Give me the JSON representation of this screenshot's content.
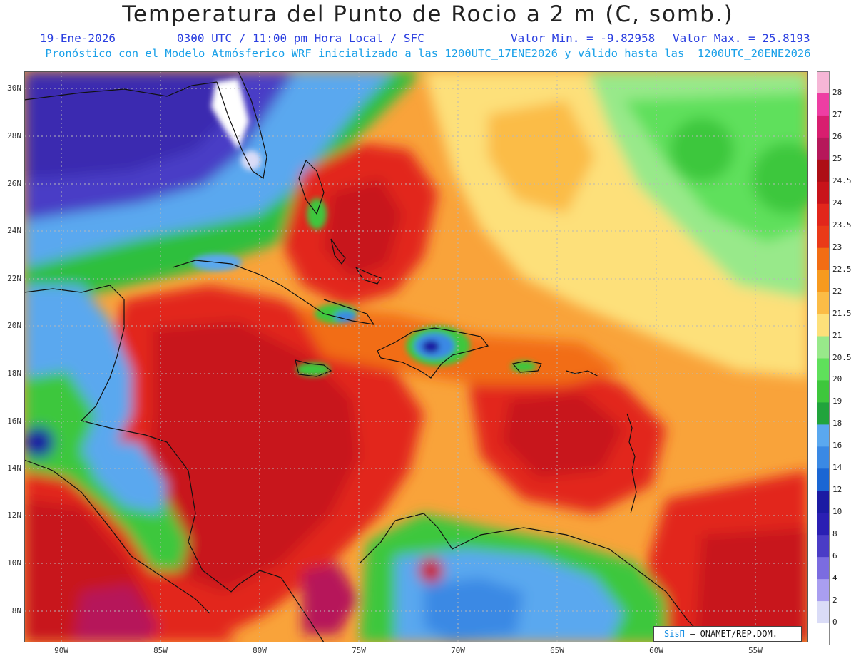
{
  "header": {
    "title": "Temperatura del Punto de Rocio a 2 m (C, somb.)",
    "date": "19-Ene-2026",
    "time": "0300 UTC / 11:00 pm Hora Local / SFC",
    "min_label": "Valor Min. = -9.82958",
    "max_label": "Valor Max. = 25.8193",
    "subtitle": "Pronóstico con el Modelo Atmósferico WRF inicializado a las 1200UTC_17ENE2026 y válido hasta las  1200UTC_20ENE2026"
  },
  "map": {
    "lat_labels": [
      "30N",
      "28N",
      "26N",
      "24N",
      "22N",
      "20N",
      "18N",
      "16N",
      "14N",
      "12N",
      "10N",
      "8N"
    ],
    "lon_labels": [
      "90W",
      "85W",
      "80W",
      "75W",
      "70W",
      "65W",
      "60W",
      "55W"
    ],
    "lat_range": [
      6.7,
      30.6
    ],
    "lon_range": [
      -91.8,
      -52.4
    ],
    "grid": "dotted every 2° lat / 5° lon"
  },
  "colorbar": {
    "labels": [
      "28",
      "27",
      "26",
      "25",
      "24.5",
      "24",
      "23.5",
      "23",
      "22.5",
      "22",
      "21.5",
      "21",
      "20.5",
      "20",
      "19",
      "18",
      "16",
      "14",
      "12",
      "10",
      "8",
      "6",
      "4",
      "2",
      "0"
    ],
    "colors": [
      "#f6b6d6",
      "#ee3ea3",
      "#d81e6f",
      "#b6185a",
      "#ad0e16",
      "#c8131a",
      "#e2261b",
      "#ea3a18",
      "#f26d13",
      "#f79a1f",
      "#fbbc46",
      "#fde07a",
      "#98e98a",
      "#5fe05b",
      "#3ec73c",
      "#21a43c",
      "#5aa8ef",
      "#3a89e4",
      "#1a66d4",
      "#1b1aa3",
      "#2a1fb3",
      "#4a3cc6",
      "#7b6ce0",
      "#a99ef0",
      "#dadcf7",
      "#ffffff"
    ]
  },
  "credit": {
    "brand": "SisΠ",
    "text": "– ONAMET/REP.DOM."
  }
}
